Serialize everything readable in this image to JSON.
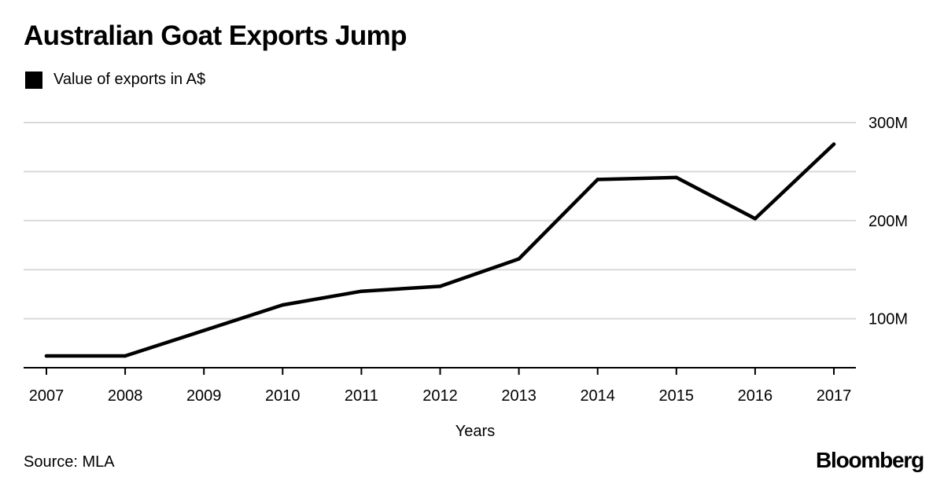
{
  "chart_data": {
    "type": "line",
    "title": "Australian Goat Exports Jump",
    "legend": [
      {
        "label": "Value of exports in A$",
        "color": "#000000"
      }
    ],
    "x": [
      "2007",
      "2008",
      "2009",
      "2010",
      "2011",
      "2012",
      "2013",
      "2014",
      "2015",
      "2016",
      "2017"
    ],
    "series": [
      {
        "name": "Value of exports in A$",
        "values": [
          62,
          62,
          88,
          114,
          128,
          133,
          161,
          242,
          244,
          202,
          278
        ]
      }
    ],
    "xlabel": "Years",
    "ylabel": "",
    "ylim": [
      50,
      300
    ],
    "yticks": [
      100,
      200,
      300
    ],
    "ytick_labels": [
      "100M",
      "200M",
      "300M"
    ],
    "gridlines": [
      150,
      200,
      250,
      300,
      100
    ],
    "grid": true,
    "y_axis_position": "right"
  },
  "footer": {
    "source": "Source: MLA",
    "logo": "Bloomberg"
  }
}
